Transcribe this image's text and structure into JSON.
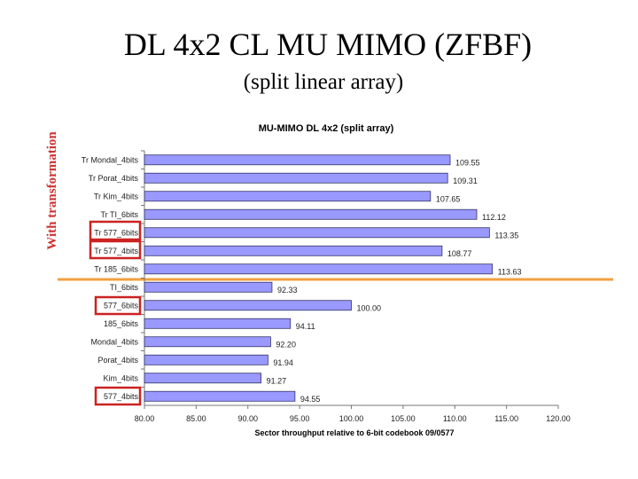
{
  "chart_data": {
    "type": "hbar",
    "slide_title": "DL 4x2 CL MU MIMO (ZFBF)",
    "slide_subtitle": "(split linear array)",
    "side_label": "With transformation",
    "title": "MU-MIMO DL 4x2 (split array)",
    "x_label": "Sector throughput relative to 6-bit codebook 09/0577",
    "categories": [
      "Tr Mondal_4bits",
      "Tr Porat_4bits",
      "Tr Kim_4bits",
      "Tr TI_6bits",
      "Tr 577_6bits",
      "Tr 577_4bits",
      "Tr 185_6bits",
      "TI_6bits",
      "577_6bits",
      "185_6bits",
      "Mondal_4bits",
      "Porat_4bits",
      "Kim_4bits",
      "577_4bits"
    ],
    "values": [
      109.55,
      109.31,
      107.65,
      112.12,
      113.35,
      108.77,
      113.63,
      92.33,
      100.0,
      94.11,
      92.2,
      91.94,
      91.27,
      94.55
    ],
    "value_labels": [
      "109.55",
      "109.31",
      "107.65",
      "112.12",
      "113.35",
      "108.77",
      "113.63",
      "92.33",
      "100.00",
      "94.11",
      "92.20",
      "91.94",
      "91.27",
      "94.55"
    ],
    "color": "#9999ff",
    "xlim": [
      80,
      120
    ],
    "xticks": [
      {
        "value": 80,
        "label": "80.00"
      },
      {
        "value": 85,
        "label": "85.00"
      },
      {
        "value": 90,
        "label": "90.00"
      },
      {
        "value": 95,
        "label": "95.00"
      },
      {
        "value": 100,
        "label": "100.00"
      },
      {
        "value": 105,
        "label": "105.00"
      },
      {
        "value": 110,
        "label": "110.00"
      },
      {
        "value": 115,
        "label": "115.00"
      },
      {
        "value": 120,
        "label": "120.00"
      }
    ]
  }
}
